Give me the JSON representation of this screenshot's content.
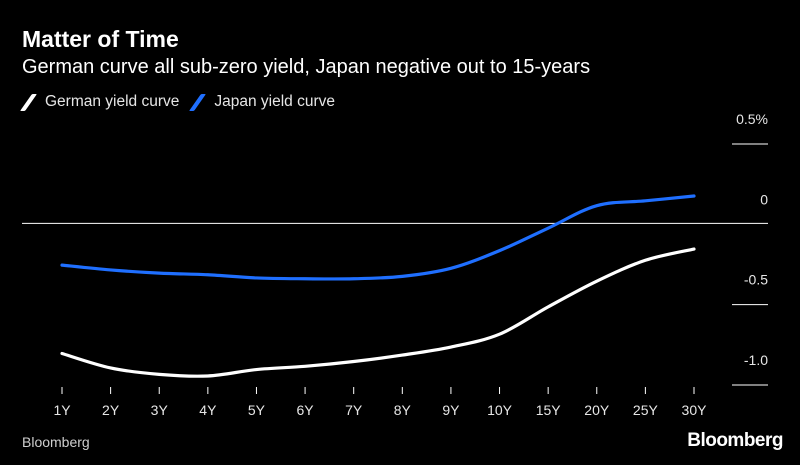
{
  "header": {
    "title": "Matter of Time",
    "subtitle": "German curve all sub-zero yield, Japan negative out to 15-years"
  },
  "footer": {
    "source": "Bloomberg",
    "logo": "Bloomberg"
  },
  "colors": {
    "background": "#000000",
    "german": "#ffffff",
    "japan": "#1f6fff",
    "axis": "#ffffff"
  },
  "chart_data": {
    "type": "line",
    "title": "Matter of Time",
    "subtitle": "German curve all sub-zero yield, Japan negative out to 15-years",
    "xlabel": "",
    "ylabel": "",
    "categories": [
      "1Y",
      "2Y",
      "3Y",
      "4Y",
      "5Y",
      "6Y",
      "7Y",
      "8Y",
      "9Y",
      "10Y",
      "15Y",
      "20Y",
      "25Y",
      "30Y"
    ],
    "y_ticks": [
      {
        "value": 0.5,
        "label": "0.5%"
      },
      {
        "value": 0,
        "label": "0"
      },
      {
        "value": -0.5,
        "label": "-0.5"
      },
      {
        "value": -1.0,
        "label": "-1.0"
      }
    ],
    "ylim": [
      -1.1,
      0.6
    ],
    "zero_line": true,
    "grid": false,
    "legend_position": "top-left",
    "series": [
      {
        "name": "German yield curve",
        "color": "#ffffff",
        "values": [
          -0.81,
          -0.9,
          -0.94,
          -0.95,
          -0.91,
          -0.89,
          -0.86,
          -0.82,
          -0.77,
          -0.69,
          -0.52,
          -0.36,
          -0.23,
          -0.16
        ]
      },
      {
        "name": "Japan yield curve",
        "color": "#1f6fff",
        "values": [
          -0.26,
          -0.29,
          -0.31,
          -0.32,
          -0.34,
          -0.345,
          -0.345,
          -0.33,
          -0.28,
          -0.17,
          -0.03,
          0.11,
          0.14,
          0.17
        ]
      }
    ]
  }
}
